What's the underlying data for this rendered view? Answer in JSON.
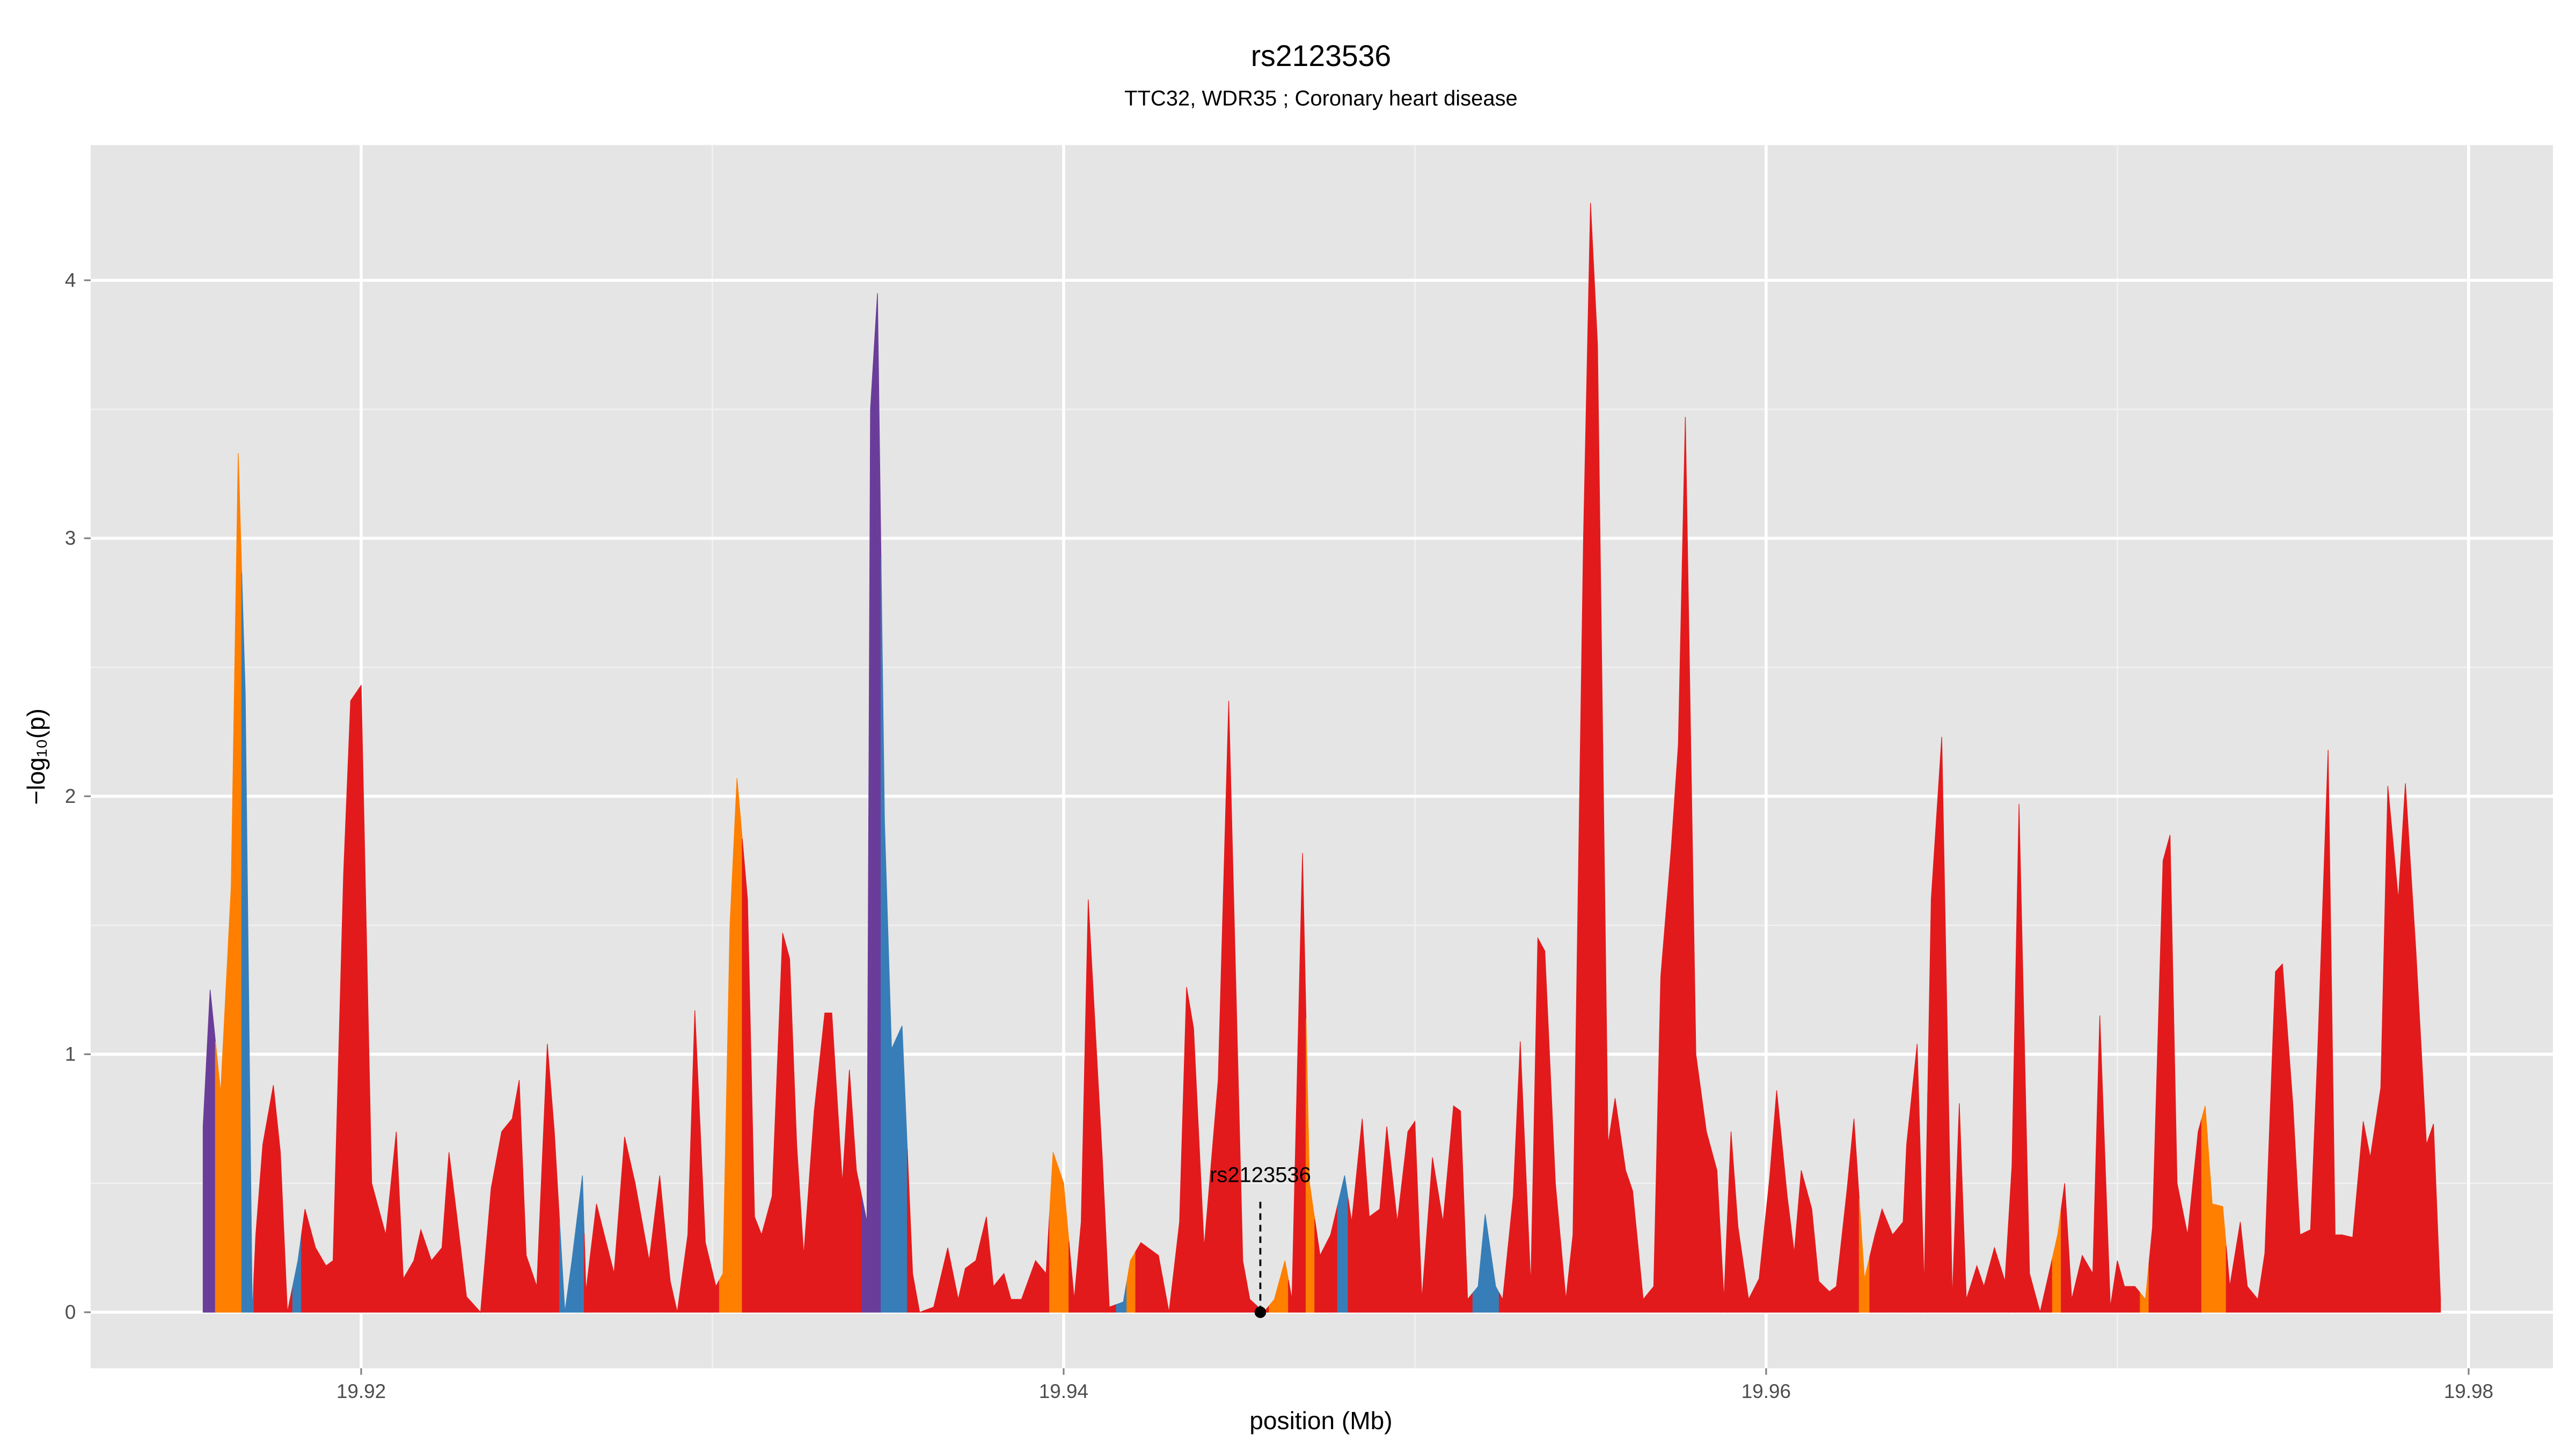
{
  "chart_data": {
    "type": "area",
    "title": "rs2123536",
    "subtitle": "TTC32, WDR35 ; Coronary heart disease",
    "x_label": "position (Mb)",
    "y_label": "−log₁₀(p)",
    "xlim": [
      19.9123,
      19.9824
    ],
    "ylim": [
      -0.217,
      4.524
    ],
    "xticks": [
      19.92,
      19.94,
      19.96,
      19.98
    ],
    "yticks": [
      0,
      1,
      2,
      3,
      4
    ],
    "minor_xticks": [
      19.93,
      19.95,
      19.97
    ],
    "minor_yticks": [
      0.5,
      1.5,
      2.5,
      3.5
    ],
    "grid": true,
    "annotation": {
      "label": "rs2123536",
      "x": 19.9456,
      "y": 0
    },
    "x": [
      19.9155,
      19.9157,
      19.916,
      19.9163,
      19.9165,
      19.9167,
      19.9169,
      19.917,
      19.9172,
      19.9175,
      19.9177,
      19.9179,
      19.9182,
      19.9184,
      19.9187,
      19.919,
      19.9192,
      19.9195,
      19.9197,
      19.92,
      19.9203,
      19.9207,
      19.921,
      19.9212,
      19.9215,
      19.9217,
      19.922,
      19.9223,
      19.9225,
      19.9227,
      19.923,
      19.9234,
      19.9237,
      19.924,
      19.9243,
      19.9245,
      19.9247,
      19.925,
      19.9253,
      19.9255,
      19.9258,
      19.926,
      19.9263,
      19.9264,
      19.9267,
      19.9272,
      19.9275,
      19.9278,
      19.9282,
      19.9285,
      19.9288,
      19.929,
      19.9293,
      19.9295,
      19.9298,
      19.9301,
      19.9303,
      19.9305,
      19.9307,
      19.931,
      19.9312,
      19.9314,
      19.9317,
      19.932,
      19.9322,
      19.9324,
      19.9326,
      19.9329,
      19.9332,
      19.9334,
      19.9337,
      19.9339,
      19.9341,
      19.9344,
      19.9345,
      19.9347,
      19.9349,
      19.9351,
      19.9354,
      19.9357,
      19.9359,
      19.9363,
      19.9367,
      19.937,
      19.9372,
      19.9375,
      19.9378,
      19.938,
      19.9383,
      19.9385,
      19.9388,
      19.9392,
      19.9395,
      19.9397,
      19.94,
      19.9403,
      19.9405,
      19.9407,
      19.9411,
      19.9413,
      19.9417,
      19.9419,
      19.9422,
      19.9424,
      19.9427,
      19.943,
      19.9433,
      19.9435,
      19.9437,
      19.944,
      19.9444,
      19.9447,
      19.9451,
      19.9453,
      19.9457,
      19.946,
      19.9463,
      19.9465,
      19.9468,
      19.947,
      19.9473,
      19.9476,
      19.948,
      19.9482,
      19.9485,
      19.9487,
      19.949,
      19.9492,
      19.9495,
      19.9498,
      19.95,
      19.9502,
      19.9505,
      19.9508,
      19.9511,
      19.9513,
      19.9515,
      19.9518,
      19.952,
      19.9523,
      19.9525,
      19.9528,
      19.953,
      19.9533,
      19.9535,
      19.9537,
      19.954,
      19.9543,
      19.9545,
      19.9548,
      19.955,
      19.9552,
      19.9555,
      19.9557,
      19.956,
      19.9562,
      19.9565,
      19.9568,
      19.957,
      19.9573,
      19.9575,
      19.9577,
      19.958,
      19.9583,
      19.9586,
      19.9588,
      19.959,
      19.9592,
      19.9595,
      19.9598,
      19.9601,
      19.9603,
      19.9606,
      19.9608,
      19.961,
      19.9613,
      19.9615,
      19.9618,
      19.962,
      19.9623,
      19.9625,
      19.9628,
      19.9631,
      19.9633,
      19.9636,
      19.9639,
      19.964,
      19.9643,
      19.9645,
      19.9647,
      19.965,
      19.9653,
      19.9655,
      19.9657,
      19.966,
      19.9662,
      19.9665,
      19.9668,
      19.967,
      19.9672,
      19.9675,
      19.9678,
      19.968,
      19.9683,
      19.9685,
      19.9687,
      19.969,
      19.9693,
      19.9695,
      19.9698,
      19.97,
      19.9702,
      19.9705,
      19.9708,
      19.971,
      19.9713,
      19.9715,
      19.9717,
      19.972,
      19.9723,
      19.9725,
      19.9727,
      19.973,
      19.9732,
      19.9735,
      19.9737,
      19.974,
      19.9742,
      19.9745,
      19.9747,
      19.975,
      19.9752,
      19.9755,
      19.9757,
      19.976,
      19.9762,
      19.9764,
      19.9767,
      19.977,
      19.9772,
      19.9775,
      19.9777,
      19.978,
      19.9782,
      19.9785,
      19.9788,
      19.979,
      19.9792
    ],
    "values": [
      0.72,
      1.25,
      0.85,
      1.65,
      3.33,
      2.4,
      0,
      0.3,
      0.65,
      0.88,
      0.62,
      0,
      0.2,
      0.4,
      0.25,
      0.18,
      0.2,
      1.7,
      2.37,
      2.43,
      0.5,
      0.3,
      0.7,
      0.13,
      0.2,
      0.32,
      0.2,
      0.25,
      0.62,
      0.4,
      0.06,
      0,
      0.48,
      0.7,
      0.75,
      0.9,
      0.22,
      0.1,
      1.04,
      0.7,
      0,
      0.2,
      0.53,
      0.08,
      0.42,
      0.15,
      0.68,
      0.5,
      0.2,
      0.53,
      0.12,
      0,
      0.3,
      1.17,
      0.27,
      0.1,
      0.15,
      1.5,
      2.07,
      1.6,
      0.37,
      0.3,
      0.45,
      1.47,
      1.37,
      0.65,
      0.22,
      0.78,
      1.16,
      1.16,
      0.5,
      0.94,
      0.55,
      0.35,
      3.5,
      3.95,
      1.9,
      1.02,
      1.11,
      0.15,
      0,
      0.02,
      0.25,
      0.05,
      0.17,
      0.2,
      0.37,
      0.1,
      0.15,
      0.05,
      0.05,
      0.2,
      0.15,
      0.62,
      0.5,
      0.05,
      0.35,
      1.6,
      0.6,
      0.02,
      0.04,
      0.2,
      0.27,
      0.25,
      0.22,
      0,
      0.35,
      1.26,
      1.1,
      0.25,
      0.9,
      2.37,
      0.2,
      0.05,
      0,
      0.05,
      0.2,
      0.05,
      1.78,
      0.5,
      0.22,
      0.3,
      0.53,
      0.35,
      0.75,
      0.37,
      0.4,
      0.72,
      0.35,
      0.7,
      0.74,
      0.05,
      0.6,
      0.35,
      0.8,
      0.78,
      0.05,
      0.1,
      0.38,
      0.1,
      0.05,
      0.45,
      1.05,
      0.1,
      1.45,
      1.4,
      0.5,
      0.05,
      0.3,
      3.0,
      4.3,
      3.75,
      0.65,
      0.83,
      0.55,
      0.47,
      0.05,
      0.1,
      1.3,
      1.8,
      2.2,
      3.47,
      1.0,
      0.7,
      0.55,
      0.05,
      0.7,
      0.33,
      0.05,
      0.13,
      0.52,
      0.86,
      0.45,
      0.23,
      0.55,
      0.4,
      0.12,
      0.08,
      0.1,
      0.47,
      0.75,
      0.13,
      0.3,
      0.4,
      0.3,
      0.35,
      0.65,
      1.04,
      0.1,
      1.6,
      2.23,
      0.05,
      0.81,
      0.05,
      0.18,
      0.1,
      0.25,
      0.12,
      0.57,
      1.97,
      0.15,
      0,
      0.12,
      0.3,
      0.5,
      0.05,
      0.22,
      0.15,
      1.15,
      0.02,
      0.2,
      0.1,
      0.1,
      0.05,
      0.33,
      1.75,
      1.85,
      0.5,
      0.3,
      0.7,
      0.8,
      0.42,
      0.41,
      0.1,
      0.35,
      0.1,
      0.05,
      0.23,
      1.32,
      1.35,
      0.8,
      0.3,
      0.32,
      1.0,
      2.18,
      0.3,
      0.3,
      0.29,
      0.74,
      0.6,
      0.87,
      2.04,
      1.6,
      2.05,
      1.4,
      0.65,
      0.73,
      0.05
    ],
    "colors": [
      "#6a3d9a",
      "#6a3d9a",
      "#ff7f00",
      "#ff7f00",
      "#ff7f00",
      "#377eb8",
      "#377eb8",
      "#e31a1c",
      "#e31a1c",
      "#e31a1c",
      "#e31a1c",
      "#e31a1c",
      "#377eb8",
      "#e31a1c",
      "#e31a1c",
      "#e31a1c",
      "#e31a1c",
      "#e31a1c",
      "#e31a1c",
      "#e31a1c",
      "#e31a1c",
      "#e31a1c",
      "#e31a1c",
      "#e31a1c",
      "#e31a1c",
      "#e31a1c",
      "#e31a1c",
      "#e31a1c",
      "#e31a1c",
      "#e31a1c",
      "#e31a1c",
      "#e31a1c",
      "#e31a1c",
      "#e31a1c",
      "#e31a1c",
      "#e31a1c",
      "#e31a1c",
      "#e31a1c",
      "#e31a1c",
      "#e31a1c",
      "#377eb8",
      "#377eb8",
      "#377eb8",
      "#e31a1c",
      "#e31a1c",
      "#e31a1c",
      "#e31a1c",
      "#e31a1c",
      "#e31a1c",
      "#e31a1c",
      "#e31a1c",
      "#e31a1c",
      "#e31a1c",
      "#e31a1c",
      "#e31a1c",
      "#e31a1c",
      "#ff7f00",
      "#ff7f00",
      "#ff7f00",
      "#e31a1c",
      "#e31a1c",
      "#e31a1c",
      "#e31a1c",
      "#e31a1c",
      "#e31a1c",
      "#e31a1c",
      "#e31a1c",
      "#e31a1c",
      "#e31a1c",
      "#e31a1c",
      "#e31a1c",
      "#e31a1c",
      "#e31a1c",
      "#6a3d9a",
      "#6a3d9a",
      "#6a3d9a",
      "#377eb8",
      "#377eb8",
      "#377eb8",
      "#e31a1c",
      "#e31a1c",
      "#e31a1c",
      "#e31a1c",
      "#e31a1c",
      "#e31a1c",
      "#e31a1c",
      "#e31a1c",
      "#e31a1c",
      "#e31a1c",
      "#e31a1c",
      "#e31a1c",
      "#e31a1c",
      "#e31a1c",
      "#ff7f00",
      "#ff7f00",
      "#e31a1c",
      "#e31a1c",
      "#e31a1c",
      "#e31a1c",
      "#e31a1c",
      "#377eb8",
      "#ff7f00",
      "#e31a1c",
      "#e31a1c",
      "#e31a1c",
      "#e31a1c",
      "#e31a1c",
      "#e31a1c",
      "#e31a1c",
      "#e31a1c",
      "#e31a1c",
      "#e31a1c",
      "#e31a1c",
      "#e31a1c",
      "#e31a1c",
      "#ff7f00",
      "#ff7f00",
      "#e31a1c",
      "#e31a1c",
      "#ff7f00",
      "#e31a1c",
      "#e31a1c",
      "#377eb8",
      "#e31a1c",
      "#e31a1c",
      "#e31a1c",
      "#e31a1c",
      "#e31a1c",
      "#e31a1c",
      "#e31a1c",
      "#e31a1c",
      "#e31a1c",
      "#e31a1c",
      "#e31a1c",
      "#e31a1c",
      "#e31a1c",
      "#e31a1c",
      "#377eb8",
      "#377eb8",
      "#377eb8",
      "#e31a1c",
      "#e31a1c",
      "#e31a1c",
      "#e31a1c",
      "#e31a1c",
      "#e31a1c",
      "#e31a1c",
      "#e31a1c",
      "#e31a1c",
      "#e31a1c",
      "#e31a1c",
      "#e31a1c",
      "#e31a1c",
      "#e31a1c",
      "#e31a1c",
      "#e31a1c",
      "#e31a1c",
      "#e31a1c",
      "#e31a1c",
      "#e31a1c",
      "#e31a1c",
      "#e31a1c",
      "#e31a1c",
      "#e31a1c",
      "#e31a1c",
      "#e31a1c",
      "#e31a1c",
      "#e31a1c",
      "#e31a1c",
      "#e31a1c",
      "#e31a1c",
      "#e31a1c",
      "#e31a1c",
      "#e31a1c",
      "#e31a1c",
      "#e31a1c",
      "#e31a1c",
      "#e31a1c",
      "#e31a1c",
      "#e31a1c",
      "#e31a1c",
      "#ff7f00",
      "#e31a1c",
      "#e31a1c",
      "#e31a1c",
      "#e31a1c",
      "#e31a1c",
      "#e31a1c",
      "#e31a1c",
      "#e31a1c",
      "#e31a1c",
      "#e31a1c",
      "#e31a1c",
      "#e31a1c",
      "#e31a1c",
      "#e31a1c",
      "#e31a1c",
      "#e31a1c",
      "#e31a1c",
      "#e31a1c",
      "#e31a1c",
      "#e31a1c",
      "#e31a1c",
      "#ff7f00",
      "#e31a1c",
      "#e31a1c",
      "#e31a1c",
      "#e31a1c",
      "#e31a1c",
      "#e31a1c",
      "#e31a1c",
      "#e31a1c",
      "#e31a1c",
      "#ff7f00",
      "#e31a1c",
      "#e31a1c",
      "#e31a1c",
      "#e31a1c",
      "#e31a1c",
      "#e31a1c",
      "#ff7f00",
      "#ff7f00",
      "#ff7f00",
      "#e31a1c",
      "#e31a1c",
      "#e31a1c",
      "#e31a1c",
      "#e31a1c",
      "#e31a1c",
      "#e31a1c",
      "#e31a1c",
      "#e31a1c",
      "#e31a1c",
      "#e31a1c",
      "#e31a1c",
      "#e31a1c",
      "#e31a1c",
      "#e31a1c",
      "#e31a1c",
      "#e31a1c",
      "#e31a1c",
      "#e31a1c",
      "#e31a1c",
      "#e31a1c",
      "#e31a1c",
      "#e31a1c",
      "#e31a1c",
      "#e31a1c",
      "#ff7f00",
      "#ff7f00",
      "#e31a1c"
    ]
  }
}
